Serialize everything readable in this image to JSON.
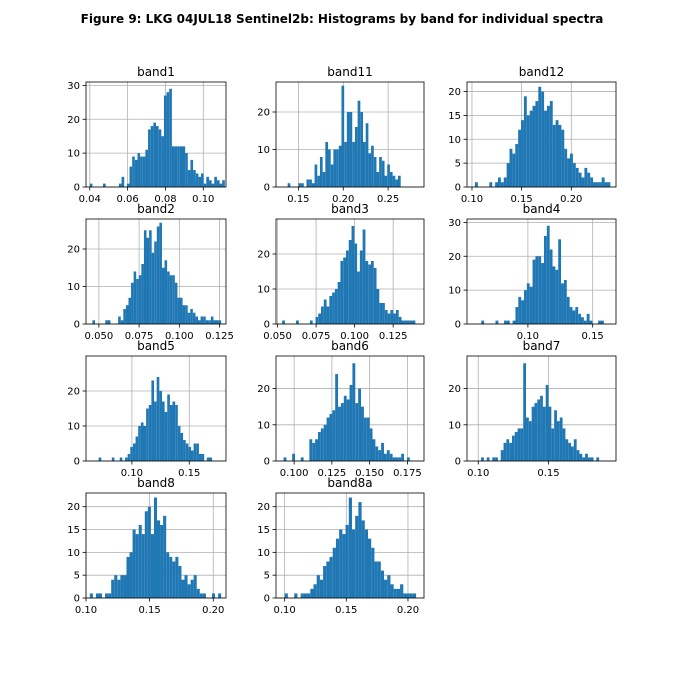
{
  "figure": {
    "title": "Figure 9: LKG 04JUL18  Sentinel2b: Histograms by band for individual spectra"
  },
  "style": {
    "bar_color": "#1f77b4",
    "grid_color": "#b0b0b0"
  },
  "chart_data": [
    {
      "type": "bar",
      "title": "band1",
      "xlim": [
        0.038,
        0.112
      ],
      "ylim": [
        0,
        31
      ],
      "grid": true,
      "xticks": [
        0.04,
        0.06,
        0.08,
        0.1
      ],
      "xtick_labels": [
        "0.04",
        "0.06",
        "0.08",
        "0.10"
      ],
      "yticks": [
        0,
        10,
        20,
        30
      ],
      "ytick_labels": [
        "0",
        "10",
        "20",
        "30"
      ],
      "bin_start": 0.04,
      "bin_width": 0.0014,
      "counts": [
        1,
        0,
        0,
        0,
        0,
        1,
        0,
        0,
        0,
        0,
        0,
        1,
        3,
        0,
        1,
        6,
        9,
        8,
        10,
        9,
        9,
        11,
        17,
        18,
        19,
        18,
        17,
        15,
        27,
        28,
        29,
        12,
        12,
        12,
        12,
        12,
        10,
        5,
        8,
        5,
        4,
        3,
        4,
        1,
        3,
        2,
        1,
        3,
        2,
        1,
        2
      ]
    },
    {
      "type": "bar",
      "title": "band11",
      "xlim": [
        0.125,
        0.29
      ],
      "ylim": [
        0,
        28
      ],
      "grid": true,
      "xticks": [
        0.15,
        0.2,
        0.25
      ],
      "xtick_labels": [
        "0.15",
        "0.20",
        "0.25"
      ],
      "yticks": [
        0,
        10,
        20
      ],
      "ytick_labels": [
        "0",
        "10",
        "20"
      ],
      "bin_start": 0.138,
      "bin_width": 0.003,
      "counts": [
        1,
        0,
        0,
        0,
        1,
        1,
        0,
        2,
        2,
        1,
        6,
        3,
        8,
        4,
        12,
        10,
        6,
        10,
        10,
        11,
        27,
        12,
        20,
        20,
        12,
        16,
        23,
        20,
        12,
        17,
        9,
        11,
        8,
        4,
        8,
        7,
        3,
        6,
        4,
        3,
        2,
        3
      ]
    },
    {
      "type": "bar",
      "title": "band12",
      "xlim": [
        0.095,
        0.245
      ],
      "ylim": [
        0,
        22
      ],
      "grid": true,
      "xticks": [
        0.1,
        0.15,
        0.2
      ],
      "xtick_labels": [
        "0.10",
        "0.15",
        "0.20"
      ],
      "yticks": [
        0,
        5,
        10,
        15,
        20
      ],
      "ytick_labels": [
        "0",
        "5",
        "10",
        "15",
        "20"
      ],
      "bin_start": 0.103,
      "bin_width": 0.0029,
      "counts": [
        1,
        0,
        0,
        0,
        0,
        1,
        0,
        1,
        2,
        1,
        2,
        5,
        8,
        7,
        9,
        12,
        14,
        19,
        15,
        16,
        17,
        18,
        21,
        20,
        16,
        17,
        18,
        13,
        14,
        13,
        12,
        8,
        6,
        7,
        5,
        4,
        3,
        2,
        4,
        3,
        2,
        1,
        1,
        1,
        2,
        1,
        1
      ]
    },
    {
      "type": "bar",
      "title": "band2",
      "xlim": [
        0.042,
        0.129
      ],
      "ylim": [
        0,
        28
      ],
      "grid": true,
      "xticks": [
        0.05,
        0.075,
        0.1,
        0.125
      ],
      "xtick_labels": [
        "0.050",
        "0.075",
        "0.100",
        "0.125"
      ],
      "yticks": [
        0,
        10,
        20
      ],
      "ytick_labels": [
        "0",
        "10",
        "20"
      ],
      "bin_start": 0.046,
      "bin_width": 0.0016,
      "counts": [
        1,
        0,
        0,
        0,
        0,
        1,
        1,
        0,
        0,
        0,
        2,
        1,
        4,
        5,
        7,
        11,
        14,
        12,
        13,
        16,
        25,
        23,
        25,
        19,
        22,
        26,
        27,
        15,
        17,
        14,
        13,
        13,
        11,
        7,
        7,
        5,
        5,
        3,
        4,
        3,
        2,
        1,
        2,
        2,
        1,
        1,
        2,
        1,
        1,
        1
      ]
    },
    {
      "type": "bar",
      "title": "band3",
      "xlim": [
        0.049,
        0.145
      ],
      "ylim": [
        0,
        30
      ],
      "grid": true,
      "xticks": [
        0.05,
        0.075,
        0.1,
        0.125
      ],
      "xtick_labels": [
        "0.050",
        "0.075",
        "0.100",
        "0.125"
      ],
      "yticks": [
        0,
        10,
        20
      ],
      "ytick_labels": [
        "0",
        "10",
        "20"
      ],
      "bin_start": 0.053,
      "bin_width": 0.0018,
      "counts": [
        1,
        0,
        0,
        0,
        0,
        1,
        0,
        0,
        0,
        0,
        1,
        0,
        2,
        3,
        5,
        7,
        5,
        8,
        9,
        10,
        12,
        18,
        19,
        21,
        24,
        28,
        23,
        15,
        21,
        27,
        18,
        17,
        18,
        16,
        10,
        6,
        6,
        4,
        3,
        4,
        3,
        4,
        2,
        1,
        1,
        1,
        1,
        1
      ]
    },
    {
      "type": "bar",
      "title": "band4",
      "xlim": [
        0.053,
        0.168
      ],
      "ylim": [
        0,
        31
      ],
      "grid": true,
      "xticks": [
        0.1,
        0.15
      ],
      "xtick_labels": [
        "0.10",
        "0.15"
      ],
      "yticks": [
        0,
        10,
        20,
        30
      ],
      "ytick_labels": [
        "0",
        "10",
        "20",
        "30"
      ],
      "bin_start": 0.064,
      "bin_width": 0.0022,
      "counts": [
        1,
        0,
        0,
        0,
        0,
        1,
        0,
        0,
        1,
        1,
        0,
        1,
        5,
        8,
        7,
        10,
        12,
        11,
        19,
        20,
        20,
        18,
        26,
        29,
        22,
        17,
        16,
        25,
        12,
        13,
        8,
        5,
        4,
        5,
        3,
        2,
        1,
        3,
        1,
        0,
        0,
        1,
        1
      ]
    },
    {
      "type": "bar",
      "title": "band5",
      "xlim": [
        0.06,
        0.182
      ],
      "ylim": [
        0,
        30
      ],
      "grid": true,
      "xticks": [
        0.1,
        0.15
      ],
      "xtick_labels": [
        "0.10",
        "0.15"
      ],
      "yticks": [
        0,
        10,
        20
      ],
      "ytick_labels": [
        "0",
        "10",
        "20"
      ],
      "bin_start": 0.071,
      "bin_width": 0.0023,
      "counts": [
        1,
        0,
        0,
        0,
        0,
        1,
        0,
        0,
        1,
        0,
        1,
        2,
        4,
        5,
        7,
        10,
        11,
        10,
        15,
        16,
        23,
        17,
        24,
        20,
        17,
        14,
        19,
        16,
        17,
        16,
        10,
        8,
        6,
        5,
        4,
        3,
        5,
        5,
        2,
        2,
        0,
        1,
        1
      ]
    },
    {
      "type": "bar",
      "title": "band6",
      "xlim": [
        0.088,
        0.186
      ],
      "ylim": [
        0,
        29
      ],
      "grid": true,
      "xticks": [
        0.1,
        0.125,
        0.15,
        0.175
      ],
      "xtick_labels": [
        "0.100",
        "0.125",
        "0.150",
        "0.175"
      ],
      "yticks": [
        0,
        10,
        20
      ],
      "ytick_labels": [
        "0",
        "10",
        "20"
      ],
      "bin_start": 0.093,
      "bin_width": 0.0019,
      "counts": [
        1,
        0,
        0,
        2,
        0,
        0,
        1,
        0,
        0,
        6,
        5,
        6,
        8,
        9,
        10,
        12,
        13,
        14,
        24,
        15,
        16,
        18,
        17,
        21,
        27,
        16,
        20,
        15,
        12,
        12,
        9,
        6,
        4,
        3,
        5,
        2,
        3,
        2,
        1,
        1,
        1,
        2,
        0,
        1
      ]
    },
    {
      "type": "bar",
      "title": "band7",
      "xlim": [
        0.092,
        0.198
      ],
      "ylim": [
        0,
        29
      ],
      "grid": true,
      "xticks": [
        0.1,
        0.15
      ],
      "xtick_labels": [
        "0.10",
        "0.15"
      ],
      "yticks": [
        0,
        10,
        20
      ],
      "ytick_labels": [
        "0",
        "10",
        "20"
      ],
      "bin_start": 0.102,
      "bin_width": 0.002,
      "counts": [
        1,
        0,
        1,
        0,
        1,
        1,
        0,
        3,
        5,
        6,
        5,
        7,
        8,
        9,
        9,
        27,
        12,
        11,
        15,
        16,
        17,
        18,
        15,
        21,
        15,
        9,
        14,
        11,
        12,
        9,
        6,
        5,
        4,
        6,
        3,
        2,
        1,
        2,
        1,
        1,
        0,
        1
      ]
    },
    {
      "type": "bar",
      "title": "band8",
      "xlim": [
        0.1,
        0.21
      ],
      "ylim": [
        0,
        23
      ],
      "grid": true,
      "xticks": [
        0.1,
        0.15,
        0.2
      ],
      "xtick_labels": [
        "0.10",
        "0.15",
        "0.20"
      ],
      "yticks": [
        0,
        5,
        10,
        15,
        20
      ],
      "ytick_labels": [
        "0",
        "5",
        "10",
        "15",
        "20"
      ],
      "bin_start": 0.103,
      "bin_width": 0.0024,
      "counts": [
        1,
        0,
        1,
        1,
        0,
        1,
        1,
        4,
        5,
        4,
        5,
        5,
        9,
        10,
        15,
        14,
        16,
        14,
        19,
        20,
        14,
        22,
        17,
        16,
        18,
        10,
        9,
        8,
        9,
        7,
        4,
        5,
        3,
        4,
        5,
        2,
        1,
        1,
        0,
        0,
        1,
        0,
        1
      ]
    },
    {
      "type": "bar",
      "title": "band8a",
      "xlim": [
        0.093,
        0.213
      ],
      "ylim": [
        0,
        23
      ],
      "grid": true,
      "xticks": [
        0.1,
        0.15,
        0.2
      ],
      "xtick_labels": [
        "0.10",
        "0.15",
        "0.20"
      ],
      "yticks": [
        0,
        5,
        10,
        15,
        20
      ],
      "ytick_labels": [
        "0",
        "5",
        "10",
        "15",
        "20"
      ],
      "bin_start": 0.1,
      "bin_width": 0.0026,
      "counts": [
        1,
        0,
        0,
        1,
        0,
        1,
        1,
        1,
        2,
        3,
        5,
        4,
        7,
        8,
        9,
        11,
        13,
        15,
        14,
        16,
        22,
        15,
        18,
        21,
        17,
        15,
        13,
        11,
        8,
        8,
        6,
        4,
        5,
        3,
        2,
        2,
        3,
        1,
        1,
        1,
        1
      ]
    }
  ]
}
